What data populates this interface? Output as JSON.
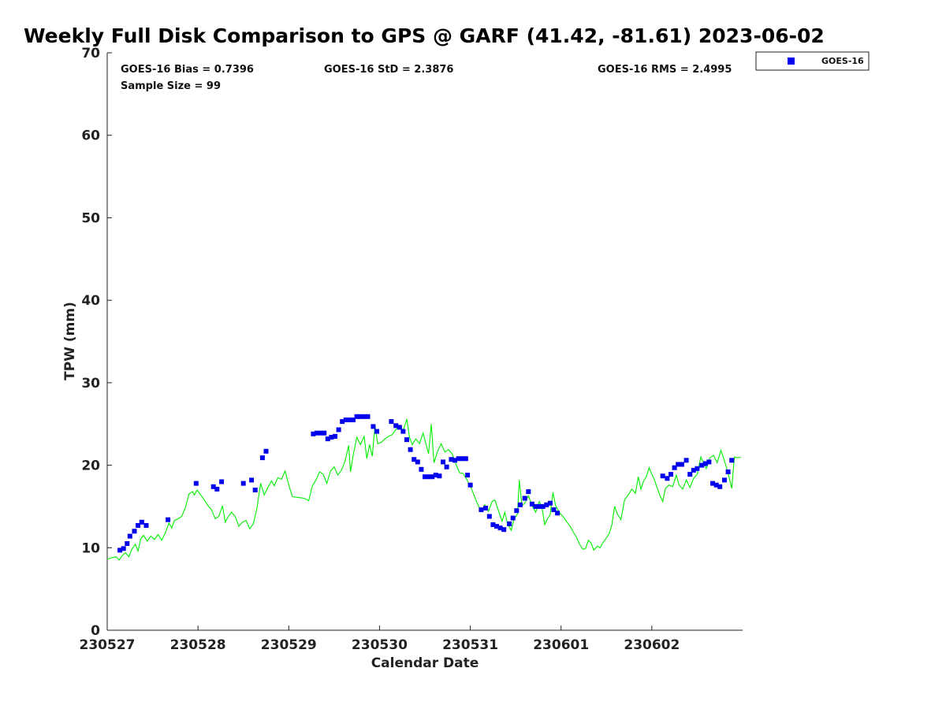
{
  "chart_data": {
    "type": "scatter",
    "title": "Weekly Full Disk Comparison to GPS @ GARF (41.42, -81.61) 2023-06-02",
    "xlabel": "Calendar Date",
    "ylabel": "TPW (mm)",
    "xlim": [
      0,
      7
    ],
    "ylim": [
      0,
      70
    ],
    "x_unit": "days since 230527 00Z",
    "x_ticks": [
      {
        "x": 0,
        "label": "230527"
      },
      {
        "x": 1,
        "label": "230528"
      },
      {
        "x": 2,
        "label": "230529"
      },
      {
        "x": 3,
        "label": "230530"
      },
      {
        "x": 4,
        "label": "230531"
      },
      {
        "x": 5,
        "label": "230601"
      },
      {
        "x": 6,
        "label": "230602"
      }
    ],
    "y_ticks": [
      0,
      10,
      20,
      30,
      40,
      50,
      60,
      70
    ],
    "grid": false,
    "legend_position": "top-right",
    "stats": {
      "bias": "GOES-16 Bias = 0.7396",
      "std": "GOES-16 StD = 2.3876",
      "rms": "GOES-16 RMS = 2.4995",
      "sample": "Sample Size = 99"
    },
    "series": [
      {
        "name": "GOES-16",
        "kind": "scatter",
        "color": "#0000ee",
        "points": [
          [
            0.14,
            9.7
          ],
          [
            0.18,
            9.9
          ],
          [
            0.22,
            10.5
          ],
          [
            0.25,
            11.4
          ],
          [
            0.3,
            12.0
          ],
          [
            0.34,
            12.7
          ],
          [
            0.38,
            13.1
          ],
          [
            0.43,
            12.7
          ],
          [
            0.67,
            13.4
          ],
          [
            0.98,
            17.8
          ],
          [
            1.17,
            17.4
          ],
          [
            1.21,
            17.1
          ],
          [
            1.26,
            18.0
          ],
          [
            1.5,
            17.8
          ],
          [
            1.59,
            18.2
          ],
          [
            1.63,
            17.0
          ],
          [
            1.71,
            20.9
          ],
          [
            1.75,
            21.7
          ],
          [
            2.27,
            23.8
          ],
          [
            2.31,
            23.9
          ],
          [
            2.35,
            23.9
          ],
          [
            2.39,
            23.9
          ],
          [
            2.43,
            23.2
          ],
          [
            2.47,
            23.4
          ],
          [
            2.51,
            23.5
          ],
          [
            2.55,
            24.3
          ],
          [
            2.59,
            25.3
          ],
          [
            2.63,
            25.5
          ],
          [
            2.67,
            25.5
          ],
          [
            2.71,
            25.5
          ],
          [
            2.75,
            25.9
          ],
          [
            2.79,
            25.9
          ],
          [
            2.83,
            25.9
          ],
          [
            2.87,
            25.9
          ],
          [
            2.93,
            24.7
          ],
          [
            2.97,
            24.1
          ],
          [
            3.13,
            25.3
          ],
          [
            3.18,
            24.8
          ],
          [
            3.22,
            24.6
          ],
          [
            3.26,
            24.1
          ],
          [
            3.3,
            23.1
          ],
          [
            3.34,
            21.9
          ],
          [
            3.38,
            20.7
          ],
          [
            3.42,
            20.4
          ],
          [
            3.46,
            19.5
          ],
          [
            3.5,
            18.6
          ],
          [
            3.54,
            18.6
          ],
          [
            3.58,
            18.6
          ],
          [
            3.62,
            18.8
          ],
          [
            3.66,
            18.7
          ],
          [
            3.7,
            20.4
          ],
          [
            3.74,
            19.8
          ],
          [
            3.79,
            20.7
          ],
          [
            3.83,
            20.6
          ],
          [
            3.87,
            20.8
          ],
          [
            3.91,
            20.8
          ],
          [
            3.95,
            20.8
          ],
          [
            3.97,
            18.8
          ],
          [
            4.0,
            17.6
          ],
          [
            4.12,
            14.6
          ],
          [
            4.17,
            14.8
          ],
          [
            4.21,
            13.8
          ],
          [
            4.25,
            12.8
          ],
          [
            4.29,
            12.6
          ],
          [
            4.33,
            12.4
          ],
          [
            4.37,
            12.2
          ],
          [
            4.43,
            12.9
          ],
          [
            4.47,
            13.6
          ],
          [
            4.51,
            14.5
          ],
          [
            4.55,
            15.2
          ],
          [
            4.6,
            16.0
          ],
          [
            4.64,
            16.8
          ],
          [
            4.68,
            15.3
          ],
          [
            4.72,
            15.0
          ],
          [
            4.76,
            15.0
          ],
          [
            4.8,
            15.0
          ],
          [
            4.84,
            15.2
          ],
          [
            4.88,
            15.4
          ],
          [
            4.92,
            14.6
          ],
          [
            4.96,
            14.2
          ],
          [
            6.12,
            18.7
          ],
          [
            6.17,
            18.4
          ],
          [
            6.21,
            18.9
          ],
          [
            6.25,
            19.7
          ],
          [
            6.29,
            20.1
          ],
          [
            6.33,
            20.1
          ],
          [
            6.38,
            20.6
          ],
          [
            6.42,
            18.9
          ],
          [
            6.46,
            19.4
          ],
          [
            6.5,
            19.6
          ],
          [
            6.55,
            20.0
          ],
          [
            6.59,
            20.2
          ],
          [
            6.63,
            20.4
          ],
          [
            6.67,
            17.8
          ],
          [
            6.71,
            17.6
          ],
          [
            6.75,
            17.4
          ],
          [
            6.8,
            18.2
          ],
          [
            6.84,
            19.2
          ],
          [
            6.88,
            20.6
          ]
        ]
      },
      {
        "name": "",
        "kind": "line",
        "color": "#00ee00",
        "points": [
          [
            0.0,
            8.6
          ],
          [
            0.05,
            8.8
          ],
          [
            0.1,
            8.9
          ],
          [
            0.13,
            8.5
          ],
          [
            0.17,
            9.1
          ],
          [
            0.2,
            9.4
          ],
          [
            0.24,
            8.9
          ],
          [
            0.27,
            9.8
          ],
          [
            0.31,
            10.4
          ],
          [
            0.34,
            9.6
          ],
          [
            0.37,
            11.1
          ],
          [
            0.4,
            11.5
          ],
          [
            0.44,
            10.8
          ],
          [
            0.48,
            11.4
          ],
          [
            0.52,
            11.0
          ],
          [
            0.56,
            11.6
          ],
          [
            0.6,
            10.9
          ],
          [
            0.64,
            11.8
          ],
          [
            0.68,
            13.0
          ],
          [
            0.71,
            12.4
          ],
          [
            0.74,
            13.3
          ],
          [
            0.78,
            13.5
          ],
          [
            0.82,
            13.8
          ],
          [
            0.86,
            14.8
          ],
          [
            0.9,
            16.5
          ],
          [
            0.94,
            16.8
          ],
          [
            0.96,
            16.4
          ],
          [
            0.99,
            17.0
          ],
          [
            1.03,
            16.4
          ],
          [
            1.07,
            15.8
          ],
          [
            1.11,
            15.1
          ],
          [
            1.15,
            14.6
          ],
          [
            1.19,
            13.5
          ],
          [
            1.23,
            13.8
          ],
          [
            1.27,
            15.1
          ],
          [
            1.3,
            13.1
          ],
          [
            1.33,
            13.7
          ],
          [
            1.37,
            14.3
          ],
          [
            1.41,
            13.8
          ],
          [
            1.45,
            12.6
          ],
          [
            1.49,
            13.1
          ],
          [
            1.53,
            13.3
          ],
          [
            1.57,
            12.3
          ],
          [
            1.61,
            12.9
          ],
          [
            1.65,
            14.8
          ],
          [
            1.69,
            17.8
          ],
          [
            1.73,
            16.4
          ],
          [
            1.77,
            17.3
          ],
          [
            1.81,
            18.1
          ],
          [
            1.84,
            17.5
          ],
          [
            1.88,
            18.5
          ],
          [
            1.92,
            18.3
          ],
          [
            1.96,
            19.3
          ],
          [
            2.0,
            17.6
          ],
          [
            2.04,
            16.2
          ],
          [
            2.1,
            16.1
          ],
          [
            2.17,
            16.0
          ],
          [
            2.22,
            15.7
          ],
          [
            2.26,
            17.5
          ],
          [
            2.3,
            18.2
          ],
          [
            2.34,
            19.2
          ],
          [
            2.38,
            18.9
          ],
          [
            2.42,
            17.8
          ],
          [
            2.46,
            19.3
          ],
          [
            2.5,
            19.8
          ],
          [
            2.54,
            18.8
          ],
          [
            2.58,
            19.4
          ],
          [
            2.62,
            20.5
          ],
          [
            2.66,
            22.4
          ],
          [
            2.68,
            19.2
          ],
          [
            2.71,
            21.2
          ],
          [
            2.75,
            23.4
          ],
          [
            2.79,
            22.5
          ],
          [
            2.83,
            23.5
          ],
          [
            2.86,
            20.8
          ],
          [
            2.89,
            22.5
          ],
          [
            2.92,
            21.1
          ],
          [
            2.95,
            24.8
          ],
          [
            2.98,
            22.6
          ],
          [
            3.02,
            22.8
          ],
          [
            3.06,
            23.2
          ],
          [
            3.1,
            23.5
          ],
          [
            3.14,
            23.7
          ],
          [
            3.18,
            24.3
          ],
          [
            3.22,
            24.8
          ],
          [
            3.26,
            24.2
          ],
          [
            3.3,
            25.6
          ],
          [
            3.33,
            23.4
          ],
          [
            3.36,
            22.5
          ],
          [
            3.4,
            23.2
          ],
          [
            3.44,
            22.6
          ],
          [
            3.48,
            23.9
          ],
          [
            3.51,
            22.6
          ],
          [
            3.54,
            21.4
          ],
          [
            3.57,
            25.0
          ],
          [
            3.6,
            20.3
          ],
          [
            3.64,
            21.7
          ],
          [
            3.68,
            22.6
          ],
          [
            3.72,
            21.6
          ],
          [
            3.76,
            21.9
          ],
          [
            3.8,
            21.4
          ],
          [
            3.84,
            20.2
          ],
          [
            3.88,
            19.1
          ],
          [
            3.92,
            19.0
          ],
          [
            3.96,
            18.3
          ],
          [
            4.0,
            17.5
          ],
          [
            4.04,
            16.4
          ],
          [
            4.08,
            15.3
          ],
          [
            4.12,
            14.4
          ],
          [
            4.16,
            15.2
          ],
          [
            4.2,
            14.4
          ],
          [
            4.24,
            15.6
          ],
          [
            4.27,
            15.8
          ],
          [
            4.31,
            14.5
          ],
          [
            4.35,
            13.2
          ],
          [
            4.38,
            14.3
          ],
          [
            4.41,
            12.9
          ],
          [
            4.45,
            12.1
          ],
          [
            4.48,
            13.4
          ],
          [
            4.52,
            14.1
          ],
          [
            4.54,
            18.2
          ],
          [
            4.57,
            15.1
          ],
          [
            4.6,
            15.4
          ],
          [
            4.64,
            16.3
          ],
          [
            4.68,
            15.1
          ],
          [
            4.72,
            14.3
          ],
          [
            4.76,
            15.6
          ],
          [
            4.79,
            14.9
          ],
          [
            4.82,
            12.8
          ],
          [
            4.85,
            13.5
          ],
          [
            4.88,
            14.0
          ],
          [
            4.91,
            16.7
          ],
          [
            4.94,
            15.1
          ],
          [
            4.98,
            14.3
          ],
          [
            5.02,
            13.8
          ],
          [
            5.06,
            13.2
          ],
          [
            5.1,
            12.6
          ],
          [
            5.14,
            11.8
          ],
          [
            5.17,
            11.3
          ],
          [
            5.2,
            10.5
          ],
          [
            5.24,
            9.8
          ],
          [
            5.27,
            9.9
          ],
          [
            5.3,
            10.9
          ],
          [
            5.33,
            10.6
          ],
          [
            5.36,
            9.7
          ],
          [
            5.4,
            10.2
          ],
          [
            5.43,
            10.0
          ],
          [
            5.46,
            10.6
          ],
          [
            5.5,
            11.2
          ],
          [
            5.53,
            11.7
          ],
          [
            5.56,
            12.8
          ],
          [
            5.59,
            15.0
          ],
          [
            5.62,
            14.1
          ],
          [
            5.66,
            13.4
          ],
          [
            5.7,
            15.8
          ],
          [
            5.74,
            16.4
          ],
          [
            5.78,
            17.1
          ],
          [
            5.82,
            16.6
          ],
          [
            5.85,
            18.6
          ],
          [
            5.88,
            17.1
          ],
          [
            5.91,
            18.1
          ],
          [
            5.94,
            18.6
          ],
          [
            5.97,
            19.7
          ],
          [
            6.0,
            18.9
          ],
          [
            6.03,
            18.2
          ],
          [
            6.06,
            17.2
          ],
          [
            6.09,
            16.3
          ],
          [
            6.12,
            15.6
          ],
          [
            6.15,
            17.2
          ],
          [
            6.19,
            17.6
          ],
          [
            6.23,
            17.4
          ],
          [
            6.27,
            18.8
          ],
          [
            6.3,
            17.6
          ],
          [
            6.34,
            17.1
          ],
          [
            6.38,
            18.2
          ],
          [
            6.42,
            17.3
          ],
          [
            6.46,
            18.4
          ],
          [
            6.5,
            18.9
          ],
          [
            6.54,
            21.0
          ],
          [
            6.57,
            20.3
          ],
          [
            6.6,
            19.6
          ],
          [
            6.64,
            20.9
          ],
          [
            6.68,
            21.2
          ],
          [
            6.72,
            20.3
          ],
          [
            6.76,
            21.8
          ],
          [
            6.79,
            20.9
          ],
          [
            6.82,
            19.8
          ],
          [
            6.85,
            18.6
          ],
          [
            6.88,
            17.2
          ],
          [
            6.91,
            21.0
          ],
          [
            6.94,
            20.9
          ],
          [
            6.98,
            21.0
          ]
        ]
      }
    ]
  }
}
